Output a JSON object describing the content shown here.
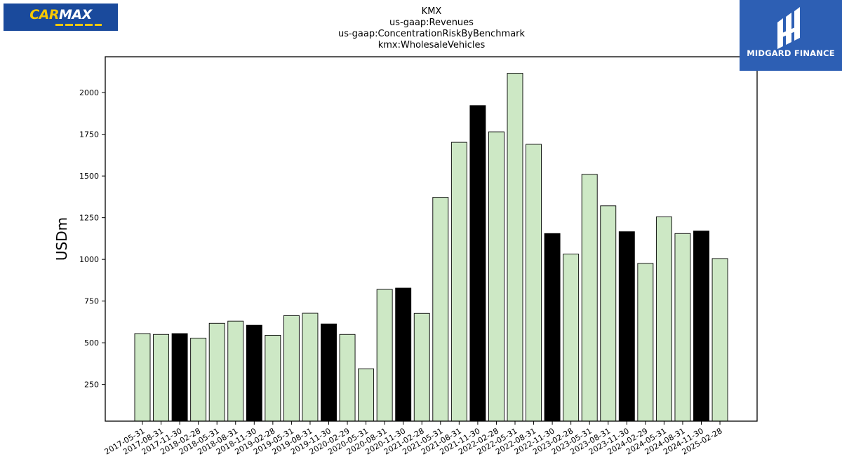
{
  "logos": {
    "carmax": {
      "part1": "CAR",
      "part2": "MAX"
    },
    "midgard": {
      "text": "MIDGARD FINANCE"
    }
  },
  "chart_data": {
    "type": "bar",
    "title": [
      "KMX",
      "us-gaap:Revenues",
      "us-gaap:ConcentrationRiskByBenchmark",
      "kmx:WholesaleVehicles"
    ],
    "xlabel": "",
    "ylabel": "USDm",
    "ylim": [
      30,
      2215
    ],
    "yticks": [
      250,
      500,
      750,
      1000,
      1250,
      1500,
      1750,
      2000
    ],
    "grid": false,
    "colors": {
      "default": "#cde8c5",
      "highlight": "#000000",
      "edge": "#000000"
    },
    "highlight_rule": "fiscal Q3 periods (November 30) drawn in black",
    "categories": [
      "2017-05-31",
      "2017-08-31",
      "2017-11-30",
      "2018-02-28",
      "2018-05-31",
      "2018-08-31",
      "2018-11-30",
      "2019-02-28",
      "2019-05-31",
      "2019-08-31",
      "2019-11-30",
      "2020-02-29",
      "2020-05-31",
      "2020-08-31",
      "2020-11-30",
      "2021-02-28",
      "2021-05-31",
      "2021-08-31",
      "2021-11-30",
      "2022-02-28",
      "2022-05-31",
      "2022-08-31",
      "2022-11-30",
      "2023-02-28",
      "2023-05-31",
      "2023-08-31",
      "2023-11-30",
      "2024-02-29",
      "2024-05-31",
      "2024-08-31",
      "2024-11-30",
      "2025-02-28"
    ],
    "values": [
      555,
      550,
      555,
      528,
      617,
      630,
      605,
      545,
      663,
      677,
      613,
      550,
      344,
      820,
      828,
      676,
      1372,
      1702,
      1922,
      1765,
      2116,
      1690,
      1155,
      1032,
      1510,
      1321,
      1166,
      976,
      1255,
      1155,
      1170,
      1005
    ],
    "highlight": [
      false,
      false,
      true,
      false,
      false,
      false,
      true,
      false,
      false,
      false,
      true,
      false,
      false,
      false,
      true,
      false,
      false,
      false,
      true,
      false,
      false,
      false,
      true,
      false,
      false,
      false,
      true,
      false,
      false,
      false,
      true,
      false
    ]
  }
}
